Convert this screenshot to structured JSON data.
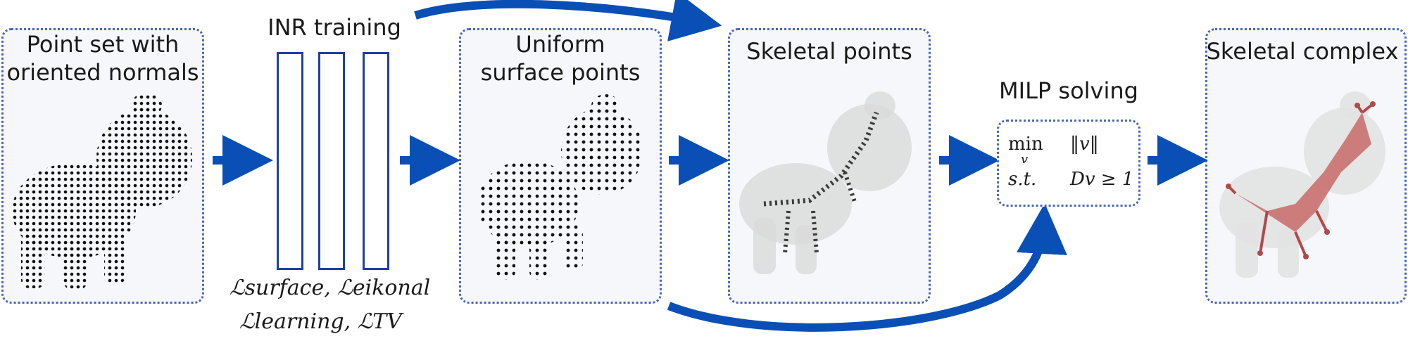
{
  "panels": {
    "input": {
      "title_line1": "Point set with",
      "title_line2": "oriented normals"
    },
    "inr": {
      "title": "INR training",
      "loss_line1": "ℒsurface, ℒeikonal",
      "loss_line2": "ℒlearning, ℒTV"
    },
    "uniform": {
      "title_line1": "Uniform",
      "title_line2": "surface points"
    },
    "skeletal_points": {
      "title": "Skeletal points"
    },
    "milp": {
      "title": "MILP solving",
      "row1_left": "min",
      "row1_sub": "v",
      "row1_right": "‖v‖",
      "row2_left": "s.t.",
      "row2_right": "Dv ≥ 1"
    },
    "complex": {
      "title": "Skeletal complex"
    }
  },
  "colors": {
    "arrow": "#0a4fb5",
    "border": "#4a64b8",
    "skeleton": "#c96a6a",
    "ghost": "#d8d8d8"
  }
}
